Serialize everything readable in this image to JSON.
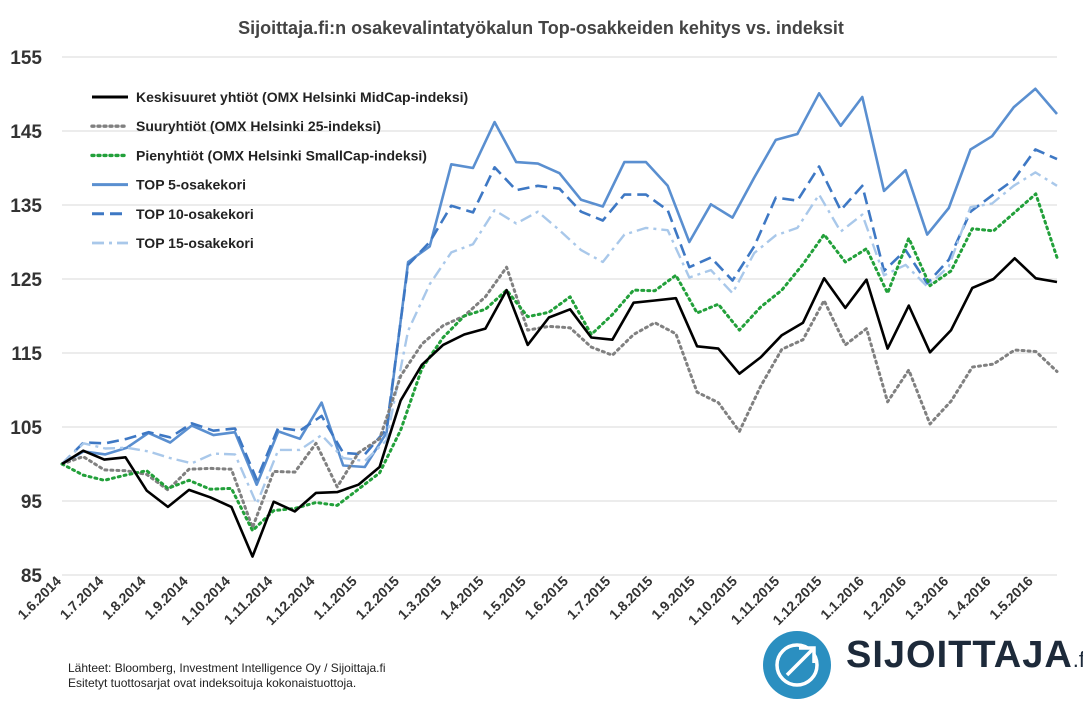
{
  "chart_data": {
    "type": "line",
    "title": "Sijoittaja.fi:n osakevalintatyökalun Top-osakkeiden kehitys vs. indeksit",
    "ylim": [
      85,
      155
    ],
    "yticks": [
      85,
      95,
      105,
      115,
      125,
      135,
      145,
      155
    ],
    "grid": true,
    "legend": "top-left",
    "x_tick_labels": [
      "1.6.2014",
      "1.7.2014",
      "1.8.2014",
      "1.9.2014",
      "1.10.2014",
      "1.11.2014",
      "1.12.2014",
      "1.1.2015",
      "1.2.2015",
      "1.3.2015",
      "1.4.2015",
      "1.5.2015",
      "1.6.2015",
      "1.7.2015",
      "1.8.2015",
      "1.9.2015",
      "1.10.2015",
      "1.11.2015",
      "1.12.2015",
      "1.1.2016",
      "1.2.2016",
      "1.3.2016",
      "1.4.2016",
      "1.5.2016"
    ],
    "series": [
      {
        "name": "Keskisuuret yhtiöt (OMX Helsinki MidCap-indeksi)",
        "color": "#000000",
        "style": "solid",
        "values": [
          100.0,
          101.8,
          100.6,
          100.9,
          96.4,
          94.2,
          96.5,
          95.5,
          94.2,
          87.5,
          94.9,
          93.6,
          96.1,
          96.2,
          97.2,
          99.6,
          108.6,
          113.4,
          116.1,
          117.5,
          118.3,
          123.5,
          116.1,
          119.8,
          120.9,
          117.1,
          116.8,
          121.8,
          122.1,
          122.4,
          115.9,
          115.6,
          112.2,
          114.4,
          117.4,
          119.1,
          125.1,
          121.1,
          124.9,
          115.6,
          121.4,
          115.1,
          118.1,
          123.8,
          125.0,
          127.8,
          125.1,
          124.6
        ]
      },
      {
        "name": "Suuryhtiöt (OMX Helsinki 25-indeksi)",
        "color": "#808080",
        "style": "dotted",
        "values": [
          100.0,
          101.0,
          99.2,
          99.1,
          98.6,
          96.5,
          99.3,
          99.4,
          99.3,
          91.4,
          99.0,
          98.9,
          102.8,
          96.9,
          101.5,
          103.4,
          111.9,
          116.2,
          118.7,
          120.0,
          122.6,
          126.6,
          118.1,
          118.6,
          118.4,
          115.8,
          114.7,
          117.5,
          119.1,
          117.6,
          109.7,
          108.3,
          104.4,
          110.5,
          115.5,
          116.8,
          122.1,
          116.1,
          118.3,
          108.4,
          112.7,
          105.4,
          108.5,
          113.1,
          113.5,
          115.4,
          115.2,
          112.5
        ]
      },
      {
        "name": "Pienyhtiöt (OMX Helsinki SmallCap-indeksi)",
        "color": "#22a03a",
        "style": "dotted",
        "values": [
          100.0,
          98.5,
          97.8,
          98.5,
          99.1,
          96.7,
          97.8,
          96.6,
          96.7,
          91.0,
          93.7,
          94.0,
          94.8,
          94.4,
          96.6,
          98.8,
          104.6,
          112.9,
          117.1,
          120.0,
          120.9,
          123.5,
          119.9,
          120.5,
          122.6,
          117.5,
          120.2,
          123.5,
          123.4,
          125.5,
          120.4,
          121.6,
          118.1,
          121.2,
          123.5,
          127.0,
          131.0,
          127.3,
          129.1,
          123.1,
          130.5,
          124.1,
          126.1,
          131.8,
          131.5,
          134.0,
          136.5,
          127.9
        ]
      },
      {
        "name": "TOP 5-osakekori",
        "color": "#5a8fd0",
        "style": "solid",
        "values": [
          100.0,
          101.7,
          101.3,
          102.2,
          104.2,
          102.9,
          105.2,
          103.9,
          104.3,
          97.2,
          104.4,
          103.4,
          108.3,
          99.8,
          99.6,
          104.2,
          127.3,
          129.4,
          140.5,
          140.0,
          146.2,
          140.8,
          140.6,
          139.3,
          135.7,
          134.8,
          140.8,
          140.8,
          137.6,
          130.0,
          135.1,
          133.3,
          138.7,
          143.8,
          144.6,
          150.1,
          145.7,
          149.6,
          136.9,
          139.7,
          131.0,
          134.6,
          142.5,
          144.3,
          148.2,
          150.7,
          147.3
        ]
      },
      {
        "name": "TOP 10-osakekori",
        "color": "#3e78c4",
        "style": "dashed",
        "values": [
          100.0,
          102.9,
          102.8,
          103.4,
          104.3,
          103.6,
          105.5,
          104.5,
          104.8,
          97.9,
          104.9,
          104.5,
          106.5,
          101.5,
          101.3,
          104.7,
          126.9,
          130.0,
          134.9,
          134.0,
          140.1,
          137.0,
          137.6,
          137.2,
          134.1,
          132.9,
          136.4,
          136.4,
          134.3,
          126.6,
          127.9,
          124.8,
          129.4,
          136.0,
          135.6,
          140.2,
          134.3,
          137.6,
          126.1,
          128.9,
          124.4,
          127.6,
          134.1,
          136.3,
          138.4,
          142.5,
          141.2
        ]
      },
      {
        "name": "TOP 15-osakekori",
        "color": "#a9c8ea",
        "style": "dashdot",
        "values": [
          100.0,
          102.8,
          102.1,
          102.2,
          101.7,
          100.8,
          100.1,
          101.4,
          101.3,
          94.6,
          101.9,
          101.9,
          103.9,
          100.8,
          100.4,
          103.2,
          118.0,
          124.3,
          128.6,
          129.7,
          134.3,
          132.5,
          134.1,
          131.6,
          128.9,
          127.3,
          131.0,
          131.9,
          131.6,
          125.2,
          126.2,
          123.1,
          128.5,
          130.9,
          131.9,
          136.4,
          131.4,
          133.7,
          125.5,
          126.9,
          124.0,
          126.7,
          134.7,
          135.2,
          137.6,
          139.4,
          137.6
        ]
      }
    ]
  },
  "footer": {
    "source": "Lähteet: Bloomberg, Investment Intelligence Oy / Sijoittaja.fi",
    "note": "Esitetyt tuottosarjat ovat indeksoituja kokonaistuottoja."
  },
  "logo": {
    "name": "SIJOITTAJA",
    "suffix": ".fi",
    "icon": "arrow-up-right-icon",
    "color": "#2b8fc0"
  }
}
